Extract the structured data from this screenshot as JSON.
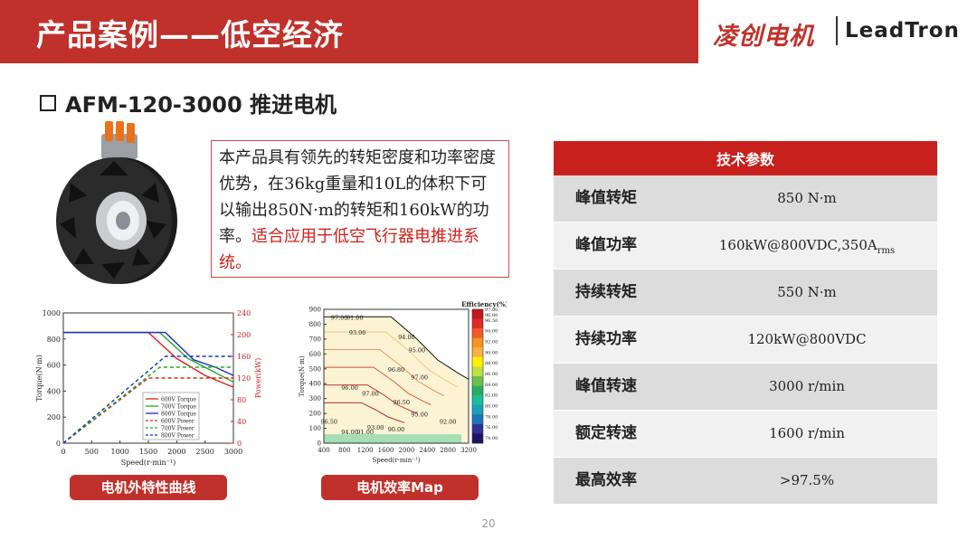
{
  "header": {
    "title": "产品案例——低空经济",
    "brand_cn": "凌创电机",
    "brand_en": "LeadTron"
  },
  "subtitle": "AFM-120-3000 推进电机",
  "description": {
    "text": "本产品具有领先的转矩密度和功率密度优势，在36kg重量和10L的体积下可以输出850N·m的转矩和160kW的功率。",
    "highlight": "适合应用于低空飞行器电推进系统。"
  },
  "specs": {
    "header": "技术参数",
    "rows": [
      {
        "label": "峰值转矩",
        "value": "850 N·m"
      },
      {
        "label": "峰值功率",
        "value": "160kW@800VDC,350A",
        "sub": "rms"
      },
      {
        "label": "持续转矩",
        "value": "550 N·m"
      },
      {
        "label": "持续功率",
        "value": "120kW@800VDC"
      },
      {
        "label": "峰值转速",
        "value": "3000 r/min"
      },
      {
        "label": "额定转速",
        "value": "1600 r/min"
      },
      {
        "label": "最高效率",
        "value": ">97.5%"
      }
    ]
  },
  "captions": {
    "chart1": "电机外特性曲线",
    "chart2": "电机效率Map"
  },
  "page_number": "20",
  "colors": {
    "brand_red": "#c0312b",
    "table_header": "#c8201d"
  },
  "chart_data": [
    {
      "type": "line",
      "x": [
        0,
        1500,
        2000,
        3000
      ],
      "xlabel": "Speed(r·min⁻¹)",
      "ylabel": "Torque(N·m)",
      "ylabel_right": "Power(kW)",
      "xlim": [
        0,
        3000
      ],
      "ylim": [
        0,
        1000
      ],
      "ylim_right": [
        0,
        240
      ],
      "xticks": [
        "0",
        "500",
        "1000",
        "1500",
        "2000",
        "2500",
        "3000"
      ],
      "yticks": [
        "0",
        "200",
        "400",
        "600",
        "800",
        "1000"
      ],
      "yticks_right": [
        "0",
        "40",
        "80",
        "120",
        "160",
        "200",
        "240"
      ],
      "legend_position": "bottom-left",
      "series": [
        {
          "name": "600V Torque",
          "axis": "left",
          "color": "#e02020",
          "dash": "solid",
          "points": [
            [
              0,
              850
            ],
            [
              1500,
              850
            ],
            [
              2000,
              650
            ],
            [
              2500,
              520
            ],
            [
              3000,
              430
            ]
          ]
        },
        {
          "name": "700V Torque",
          "axis": "left",
          "color": "#22aa22",
          "dash": "solid",
          "points": [
            [
              0,
              850
            ],
            [
              1700,
              850
            ],
            [
              2200,
              650
            ],
            [
              2600,
              560
            ],
            [
              3000,
              470
            ]
          ]
        },
        {
          "name": "800V Torque",
          "axis": "left",
          "color": "#1a2fc0",
          "dash": "solid",
          "points": [
            [
              0,
              850
            ],
            [
              1800,
              850
            ],
            [
              2300,
              640
            ],
            [
              2700,
              580
            ],
            [
              3000,
              520
            ]
          ]
        },
        {
          "name": "600V Power",
          "axis": "right",
          "color": "#e02020",
          "dash": "dashed",
          "points": [
            [
              0,
              0
            ],
            [
              1500,
              120
            ],
            [
              3000,
              120
            ]
          ]
        },
        {
          "name": "700V Power",
          "axis": "right",
          "color": "#22aa22",
          "dash": "dashed",
          "points": [
            [
              0,
              0
            ],
            [
              1700,
              140
            ],
            [
              3000,
              140
            ]
          ]
        },
        {
          "name": "800V Power",
          "axis": "right",
          "color": "#1a2fc0",
          "dash": "dashed",
          "points": [
            [
              0,
              0
            ],
            [
              1800,
              160
            ],
            [
              3000,
              160
            ]
          ]
        }
      ]
    },
    {
      "type": "heatmap",
      "title": "Efficiency(%)",
      "xlabel": "Speed(r·min⁻¹)",
      "ylabel": "Torque(N·m)",
      "xlim": [
        400,
        3200
      ],
      "ylim": [
        0,
        900
      ],
      "xticks": [
        "400",
        "800",
        "1200",
        "1600",
        "2000",
        "2400",
        "2800",
        "3200"
      ],
      "yticks": [
        "0",
        "100",
        "200",
        "300",
        "400",
        "500",
        "600",
        "700",
        "800",
        "900"
      ],
      "colorbar_ticks": [
        "97.00",
        "96.80",
        "96.50",
        "95.00",
        "94.00",
        "93.00",
        "92.00",
        "91.00",
        "90.00",
        "89.00",
        "88.00",
        "87.00",
        "86.00",
        "85.00",
        "84.00",
        "83.00",
        "82.00",
        "81.00",
        "80.00",
        "79.00",
        "78.00",
        "77.00",
        "76.00",
        "75.00",
        "74.00",
        "73.00"
      ],
      "envelope": [
        [
          400,
          850
        ],
        [
          1700,
          850
        ],
        [
          2200,
          700
        ],
        [
          2600,
          560
        ],
        [
          3000,
          470
        ],
        [
          3200,
          430
        ]
      ],
      "contour_labels": [
        {
          "text": "97.00",
          "x": 700,
          "y": 830
        },
        {
          "text": "91.00",
          "x": 1000,
          "y": 830
        },
        {
          "text": "93.00",
          "x": 1050,
          "y": 730
        },
        {
          "text": "94.00",
          "x": 2000,
          "y": 700
        },
        {
          "text": "95.00",
          "x": 2200,
          "y": 610
        },
        {
          "text": "96.80",
          "x": 1800,
          "y": 480
        },
        {
          "text": "97.00",
          "x": 2250,
          "y": 430
        },
        {
          "text": "97.00",
          "x": 1300,
          "y": 320
        },
        {
          "text": "96.00",
          "x": 900,
          "y": 360
        },
        {
          "text": "96.50",
          "x": 1900,
          "y": 260
        },
        {
          "text": "95.00",
          "x": 2250,
          "y": 180
        },
        {
          "text": "94.00",
          "x": 900,
          "y": 60
        },
        {
          "text": "93.00",
          "x": 1400,
          "y": 90
        },
        {
          "text": "92.00",
          "x": 2800,
          "y": 130
        },
        {
          "text": "91.00",
          "x": 1200,
          "y": 60
        },
        {
          "text": "90.00",
          "x": 1800,
          "y": 80
        },
        {
          "text": "96.50",
          "x": 500,
          "y": 130
        }
      ]
    }
  ]
}
